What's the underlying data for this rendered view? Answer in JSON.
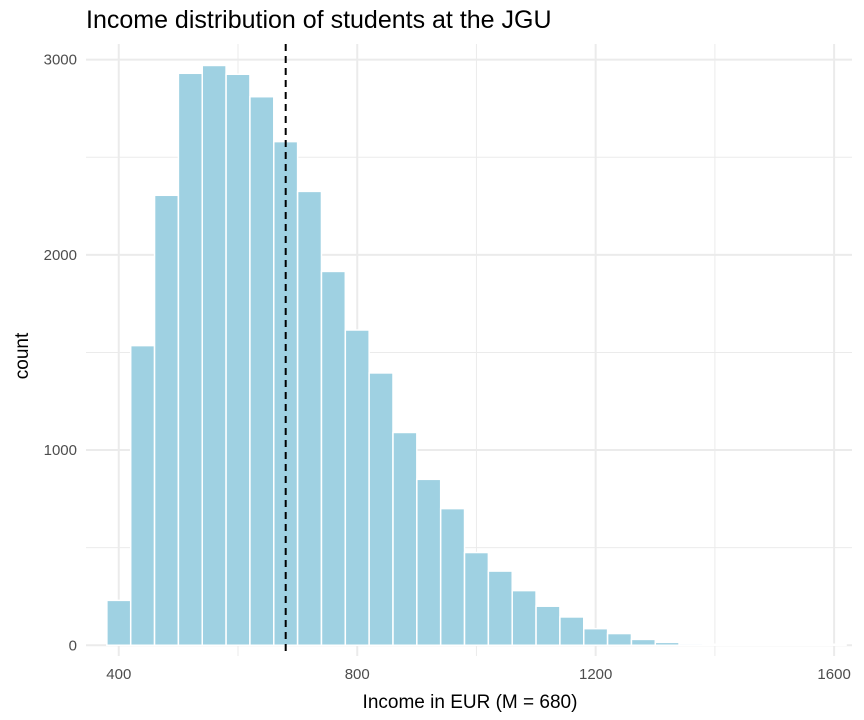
{
  "chart_data": {
    "type": "bar",
    "subtype": "histogram",
    "title": "Income distribution of students at the JGU",
    "xlabel": "Income in EUR (M = 680)",
    "ylabel": "count",
    "xlim": [
      345,
      1630
    ],
    "ylim": [
      -55,
      3080
    ],
    "x_ticks": [
      400,
      800,
      1200,
      1600
    ],
    "y_ticks": [
      0,
      1000,
      2000,
      3000
    ],
    "x_minor_ticks": [
      600,
      1000,
      1400
    ],
    "y_minor_ticks": [
      500,
      1500,
      2500
    ],
    "bin_width": 40,
    "bins": [
      {
        "x0": 380,
        "x1": 420,
        "count": 230
      },
      {
        "x0": 420,
        "x1": 460,
        "count": 1535
      },
      {
        "x0": 460,
        "x1": 500,
        "count": 2305
      },
      {
        "x0": 500,
        "x1": 540,
        "count": 2930
      },
      {
        "x0": 540,
        "x1": 580,
        "count": 2970
      },
      {
        "x0": 580,
        "x1": 620,
        "count": 2925
      },
      {
        "x0": 620,
        "x1": 660,
        "count": 2810
      },
      {
        "x0": 660,
        "x1": 700,
        "count": 2580
      },
      {
        "x0": 700,
        "x1": 740,
        "count": 2325
      },
      {
        "x0": 740,
        "x1": 780,
        "count": 1915
      },
      {
        "x0": 780,
        "x1": 820,
        "count": 1615
      },
      {
        "x0": 820,
        "x1": 860,
        "count": 1395
      },
      {
        "x0": 860,
        "x1": 900,
        "count": 1090
      },
      {
        "x0": 900,
        "x1": 940,
        "count": 850
      },
      {
        "x0": 940,
        "x1": 980,
        "count": 700
      },
      {
        "x0": 980,
        "x1": 1020,
        "count": 475
      },
      {
        "x0": 1020,
        "x1": 1060,
        "count": 380
      },
      {
        "x0": 1060,
        "x1": 1100,
        "count": 280
      },
      {
        "x0": 1100,
        "x1": 1140,
        "count": 200
      },
      {
        "x0": 1140,
        "x1": 1180,
        "count": 145
      },
      {
        "x0": 1180,
        "x1": 1220,
        "count": 85
      },
      {
        "x0": 1220,
        "x1": 1260,
        "count": 60
      },
      {
        "x0": 1260,
        "x1": 1300,
        "count": 30
      },
      {
        "x0": 1300,
        "x1": 1340,
        "count": 15
      },
      {
        "x0": 1340,
        "x1": 1380,
        "count": 8
      },
      {
        "x0": 1380,
        "x1": 1420,
        "count": 3
      },
      {
        "x0": 1420,
        "x1": 1460,
        "count": 2
      },
      {
        "x0": 1460,
        "x1": 1500,
        "count": 1
      },
      {
        "x0": 1500,
        "x1": 1540,
        "count": 1
      },
      {
        "x0": 1540,
        "x1": 1580,
        "count": 1
      },
      {
        "x0": 1580,
        "x1": 1620,
        "count": 4
      }
    ],
    "mean_line": {
      "x": 680,
      "style": "dashed",
      "color": "#000000"
    },
    "bar_fill": "#9fd1e2",
    "bar_outline": "#ffffff",
    "grid": true,
    "grid_color": "#ebebeb"
  }
}
